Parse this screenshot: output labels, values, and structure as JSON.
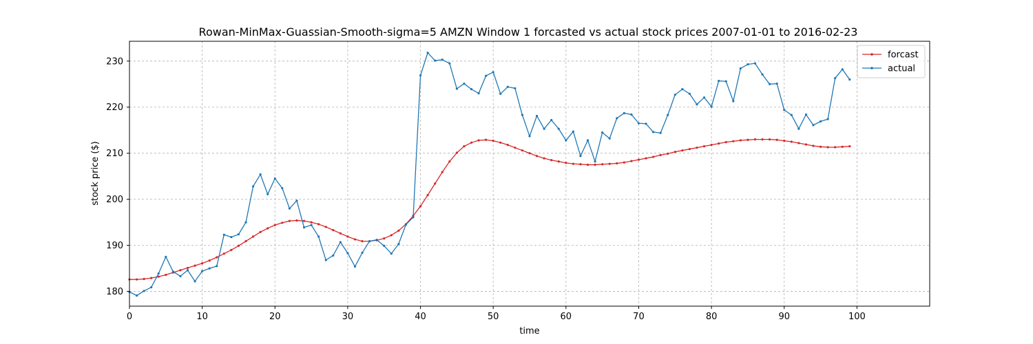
{
  "chart_data": {
    "type": "line",
    "title": "Rowan-MinMax-Guassian-Smooth-sigma=5 AMZN Window 1 forcasted vs actual stock prices 2007-01-01 to 2016-02-23",
    "xlabel": "time",
    "ylabel": "stock price ($)",
    "xlim": [
      0,
      110
    ],
    "ylim": [
      176.8,
      234.3
    ],
    "xticks": [
      0,
      10,
      20,
      30,
      40,
      50,
      60,
      70,
      80,
      90,
      100
    ],
    "yticks": [
      180,
      190,
      200,
      210,
      220,
      230
    ],
    "grid": true,
    "legend_position": "top-right",
    "series": [
      {
        "name": "forcast",
        "color": "#d62728",
        "values": [
          182.6,
          182.6,
          182.7,
          182.9,
          183.2,
          183.6,
          184.1,
          184.6,
          185.1,
          185.6,
          186.1,
          186.7,
          187.4,
          188.2,
          189.0,
          189.9,
          190.9,
          191.9,
          192.9,
          193.7,
          194.4,
          194.9,
          195.3,
          195.4,
          195.3,
          195.0,
          194.6,
          194.0,
          193.3,
          192.6,
          191.9,
          191.3,
          190.9,
          190.9,
          191.1,
          191.5,
          192.2,
          193.2,
          194.6,
          196.4,
          198.5,
          200.9,
          203.4,
          205.9,
          208.2,
          210.1,
          211.5,
          212.3,
          212.8,
          212.9,
          212.7,
          212.3,
          211.8,
          211.2,
          210.6,
          210.0,
          209.4,
          208.9,
          208.5,
          208.2,
          207.9,
          207.7,
          207.6,
          207.5,
          207.5,
          207.6,
          207.7,
          207.8,
          208.0,
          208.3,
          208.6,
          208.9,
          209.2,
          209.6,
          209.9,
          210.3,
          210.6,
          210.9,
          211.2,
          211.5,
          211.8,
          212.1,
          212.4,
          212.6,
          212.8,
          212.9,
          213.0,
          213.0,
          213.0,
          212.9,
          212.7,
          212.5,
          212.2,
          211.9,
          211.6,
          211.4,
          211.3,
          211.3,
          211.4,
          211.5
        ]
      },
      {
        "name": "actual",
        "color": "#1f77b4",
        "values": [
          179.9,
          179.1,
          180.1,
          180.9,
          183.9,
          187.5,
          184.3,
          183.3,
          184.6,
          182.2,
          184.4,
          185.0,
          185.5,
          192.3,
          191.8,
          192.4,
          195.0,
          202.8,
          205.4,
          201.1,
          204.5,
          202.4,
          198.0,
          199.7,
          193.9,
          194.4,
          191.9,
          186.8,
          187.8,
          190.7,
          188.3,
          185.4,
          188.4,
          190.9,
          191.2,
          189.9,
          188.2,
          190.3,
          194.5,
          196.1,
          226.9,
          231.8,
          230.1,
          230.3,
          229.5,
          224.0,
          225.1,
          223.9,
          223.0,
          226.8,
          227.6,
          222.9,
          224.4,
          224.1,
          218.3,
          213.7,
          218.1,
          215.3,
          217.2,
          215.3,
          212.8,
          214.7,
          209.4,
          212.8,
          208.2,
          214.5,
          213.2,
          217.6,
          218.7,
          218.4,
          216.5,
          216.4,
          214.6,
          214.4,
          218.3,
          222.7,
          223.9,
          222.9,
          220.6,
          222.1,
          220.1,
          225.7,
          225.6,
          221.3,
          228.4,
          229.3,
          229.5,
          227.1,
          225.0,
          225.1,
          219.4,
          218.3,
          215.3,
          218.4,
          216.1,
          216.9,
          217.4,
          226.3,
          228.2,
          226.0
        ]
      }
    ]
  }
}
